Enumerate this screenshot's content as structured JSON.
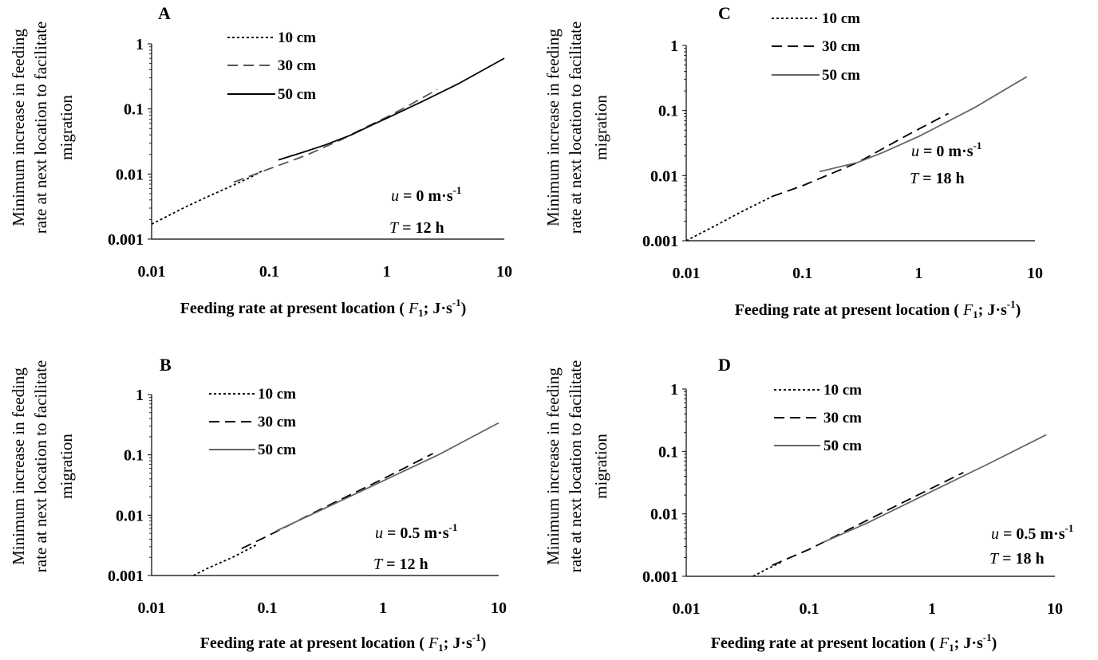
{
  "chart_data": [
    {
      "type": "line",
      "panel": "A",
      "ylabel": [
        "Minimum increase in feeding",
        "rate at next location to facilitate",
        "migration"
      ],
      "xlabel": {
        "prefix": "Feeding rate at present location (",
        "var": "F",
        "sub": "1",
        "mid": "; J·s",
        "sup": "-1",
        "suffix": ")"
      },
      "x_ticks": [
        "0.01",
        "0.1",
        "1",
        "10"
      ],
      "y_ticks": [
        "1",
        "0.1",
        "0.01",
        "0.001"
      ],
      "xlim": [
        0.01,
        10
      ],
      "ylim": [
        0.001,
        1
      ],
      "log_x": true,
      "log_y": true,
      "grid": false,
      "legend_position": "top-center",
      "annotation": {
        "u_var": "u",
        "u_text": " = 0 m·s",
        "u_sup": "-1",
        "t_var": "T",
        "t_text": " = 12 h"
      },
      "series": [
        {
          "name": "10 cm",
          "style": "dotted",
          "color": "#000000",
          "x": [
            0.01,
            0.02,
            0.03,
            0.05,
            0.07,
            0.09
          ],
          "y": [
            0.0017,
            0.0032,
            0.0045,
            0.0068,
            0.009,
            0.0115
          ]
        },
        {
          "name": "30 cm",
          "style": "dashed",
          "color": "#555555",
          "x": [
            0.05,
            0.1,
            0.2,
            0.4,
            0.7,
            1.0,
            1.5,
            2.7
          ],
          "y": [
            0.0075,
            0.012,
            0.019,
            0.033,
            0.055,
            0.075,
            0.11,
            0.2
          ]
        },
        {
          "name": "50 cm",
          "style": "solid",
          "color": "#000000",
          "x": [
            0.12,
            0.2,
            0.3,
            0.5,
            0.8,
            1.0,
            2.0,
            4.0,
            10.0
          ],
          "y": [
            0.0165,
            0.022,
            0.028,
            0.04,
            0.06,
            0.072,
            0.13,
            0.24,
            0.6
          ]
        }
      ]
    },
    {
      "type": "line",
      "panel": "B",
      "ylabel": [
        "Minimum increase in feeding",
        "rate at next location to facilitate",
        "migration"
      ],
      "xlabel": {
        "prefix": "Feeding rate at present location (",
        "var": "F",
        "sub": "1",
        "mid": "; J·s",
        "sup": "-1",
        "suffix": ")"
      },
      "x_ticks": [
        "0.01",
        "0.1",
        "1",
        "10"
      ],
      "y_ticks": [
        "1",
        "0.1",
        "0.01",
        "0.001"
      ],
      "xlim": [
        0.01,
        10
      ],
      "ylim": [
        0.001,
        1
      ],
      "log_x": true,
      "log_y": true,
      "grid": false,
      "legend_position": "top-center",
      "annotation": {
        "u_var": "u",
        "u_text": " = 0.5 m·s",
        "u_sup": "-1",
        "t_var": "T",
        "t_text": " = 12 h"
      },
      "series": [
        {
          "name": "10 cm",
          "style": "dotted",
          "color": "#000000",
          "x": [
            0.023,
            0.03,
            0.05,
            0.08
          ],
          "y": [
            0.001,
            0.0013,
            0.002,
            0.0032
          ]
        },
        {
          "name": "30 cm",
          "style": "dashed",
          "color": "#000000",
          "x": [
            0.06,
            0.1,
            0.3,
            1.0,
            2.7
          ],
          "y": [
            0.0028,
            0.0045,
            0.013,
            0.04,
            0.105
          ]
        },
        {
          "name": "50 cm",
          "style": "solid",
          "color": "#666666",
          "x": [
            0.12,
            0.3,
            1.0,
            3.0,
            10.0
          ],
          "y": [
            0.0055,
            0.0125,
            0.037,
            0.1,
            0.34
          ]
        }
      ]
    },
    {
      "type": "line",
      "panel": "C",
      "ylabel": [
        "Minimum increase in feeding",
        "rate at next location to facilitate",
        "migration"
      ],
      "xlabel": {
        "prefix": "Feeding rate at present location (",
        "var": "F",
        "sub": "1",
        "mid": "; J·s",
        "sup": "-1",
        "suffix": ")"
      },
      "x_ticks": [
        "0.01",
        "0.1",
        "1",
        "10"
      ],
      "y_ticks": [
        "1",
        "0.1",
        "0.01",
        "0.001"
      ],
      "xlim": [
        0.01,
        10
      ],
      "ylim": [
        0.001,
        1
      ],
      "log_x": true,
      "log_y": true,
      "grid": false,
      "legend_position": "top-center",
      "annotation": {
        "u_var": "u",
        "u_text": " = 0 m·s",
        "u_sup": "-1",
        "t_var": "T",
        "t_text": " = 18 h"
      },
      "series": [
        {
          "name": "10 cm",
          "style": "dotted",
          "color": "#000000",
          "x": [
            0.01,
            0.02,
            0.03,
            0.055
          ],
          "y": [
            0.001,
            0.0019,
            0.0028,
            0.0048
          ]
        },
        {
          "name": "30 cm",
          "style": "dashed",
          "color": "#000000",
          "x": [
            0.055,
            0.1,
            0.3,
            0.8,
            1.8
          ],
          "y": [
            0.0048,
            0.007,
            0.016,
            0.042,
            0.09
          ]
        },
        {
          "name": "50 cm",
          "style": "solid",
          "color": "#666666",
          "x": [
            0.14,
            0.3,
            0.5,
            1.0,
            3.0,
            8.5
          ],
          "y": [
            0.0115,
            0.016,
            0.023,
            0.04,
            0.11,
            0.33
          ]
        }
      ]
    },
    {
      "type": "line",
      "panel": "D",
      "ylabel": [
        "Minimum increase in feeding",
        "rate at next location to facilitate",
        "migration"
      ],
      "xlabel": {
        "prefix": "Feeding rate at present location (",
        "var": "F",
        "sub": "1",
        "mid": "; J·s",
        "sup": "-1",
        "suffix": ")"
      },
      "x_ticks": [
        "0.01",
        "0.1",
        "1",
        "10"
      ],
      "y_ticks": [
        "1",
        "0.1",
        "0.01",
        "0.001"
      ],
      "xlim": [
        0.01,
        10
      ],
      "ylim": [
        0.001,
        1
      ],
      "log_x": true,
      "log_y": true,
      "grid": false,
      "legend_position": "top-center",
      "annotation": {
        "u_var": "u",
        "u_text": " = 0.5 m·s",
        "u_sup": "-1",
        "t_var": "T",
        "t_text": " = 18 h"
      },
      "series": [
        {
          "name": "10 cm",
          "style": "dotted",
          "color": "#000000",
          "x": [
            0.035,
            0.045,
            0.06
          ],
          "y": [
            0.001,
            0.0013,
            0.0017
          ]
        },
        {
          "name": "30 cm",
          "style": "dashed",
          "color": "#000000",
          "x": [
            0.05,
            0.1,
            0.3,
            1.0,
            1.8
          ],
          "y": [
            0.0015,
            0.0027,
            0.008,
            0.026,
            0.046
          ]
        },
        {
          "name": "50 cm",
          "style": "solid",
          "color": "#666666",
          "x": [
            0.13,
            0.3,
            1.0,
            3.0,
            8.5
          ],
          "y": [
            0.0035,
            0.0072,
            0.023,
            0.066,
            0.185
          ]
        }
      ]
    }
  ]
}
